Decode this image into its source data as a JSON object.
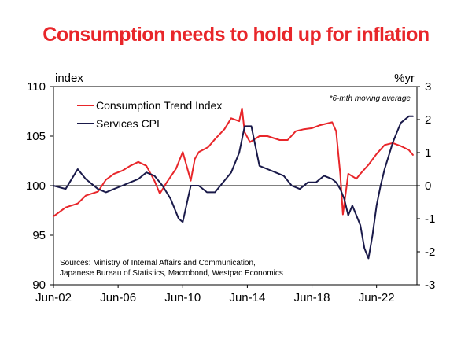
{
  "title": "Consumption needs to hold up for inflation",
  "chart_data": {
    "type": "line",
    "left_axis_label": "index",
    "right_axis_label": "%yr",
    "left_ylim": [
      90,
      110
    ],
    "right_ylim": [
      -3,
      3
    ],
    "left_ticks": [
      "90",
      "95",
      "100",
      "105",
      "110"
    ],
    "right_ticks": [
      "-3",
      "-2",
      "-1",
      "0",
      "1",
      "2",
      "3"
    ],
    "xlim": [
      "2002-06",
      "2024-12"
    ],
    "x_tick_labels": [
      "Jun-02",
      "Jun-06",
      "Jun-10",
      "Jun-14",
      "Jun-18",
      "Jun-22"
    ],
    "note": "*6-mth moving average",
    "sources_line1": "Sources: Ministry of Internal Affairs and Communication,",
    "sources_line2": "Japanese Bureau of Statistics, Macrobond, Westpac Economics",
    "series": [
      {
        "name": "Consumption Trend Index",
        "axis": "left",
        "color": "#e8262a",
        "x": [
          "2002-06",
          "2003-03",
          "2003-12",
          "2004-06",
          "2005-03",
          "2005-09",
          "2006-03",
          "2006-09",
          "2007-03",
          "2007-09",
          "2008-03",
          "2008-09",
          "2009-01",
          "2009-06",
          "2010-01",
          "2010-06",
          "2010-12",
          "2011-03",
          "2011-06",
          "2012-01",
          "2012-06",
          "2013-01",
          "2013-06",
          "2013-12",
          "2014-02",
          "2014-04",
          "2014-08",
          "2015-03",
          "2015-09",
          "2016-06",
          "2016-12",
          "2017-06",
          "2017-12",
          "2018-06",
          "2018-12",
          "2019-06",
          "2019-09",
          "2019-12",
          "2020-03",
          "2020-05",
          "2020-09",
          "2021-03",
          "2021-06",
          "2021-12",
          "2022-06",
          "2022-12",
          "2023-06",
          "2023-12",
          "2024-06",
          "2024-09"
        ],
        "values": [
          96.9,
          97.8,
          98.2,
          99.0,
          99.4,
          100.6,
          101.2,
          101.5,
          102.0,
          102.4,
          102.0,
          100.5,
          99.2,
          100.3,
          101.7,
          103.4,
          100.5,
          102.7,
          103.4,
          103.9,
          104.7,
          105.7,
          106.8,
          106.5,
          107.8,
          105.4,
          104.4,
          105.0,
          105.0,
          104.6,
          104.6,
          105.5,
          105.7,
          105.8,
          106.1,
          106.3,
          106.4,
          105.5,
          101.2,
          97.1,
          101.2,
          100.7,
          101.2,
          102.1,
          103.2,
          104.1,
          104.3,
          104.0,
          103.6,
          103.1
        ]
      },
      {
        "name": "Services CPI",
        "axis": "right",
        "color": "#1a1a4a",
        "x": [
          "2002-06",
          "2003-03",
          "2003-06",
          "2003-12",
          "2004-06",
          "2005-03",
          "2005-09",
          "2006-03",
          "2006-09",
          "2007-03",
          "2007-09",
          "2008-03",
          "2008-09",
          "2009-03",
          "2009-09",
          "2010-03",
          "2010-06",
          "2010-12",
          "2011-06",
          "2011-12",
          "2012-06",
          "2012-12",
          "2013-06",
          "2013-12",
          "2014-04",
          "2014-09",
          "2015-03",
          "2015-09",
          "2016-03",
          "2016-09",
          "2017-03",
          "2017-09",
          "2018-03",
          "2018-09",
          "2019-03",
          "2019-09",
          "2019-12",
          "2020-03",
          "2020-06",
          "2020-09",
          "2020-12",
          "2021-03",
          "2021-06",
          "2021-09",
          "2021-12",
          "2022-03",
          "2022-06",
          "2022-09",
          "2022-12",
          "2023-03",
          "2023-06",
          "2023-09",
          "2023-12",
          "2024-03",
          "2024-06",
          "2024-09"
        ],
        "values": [
          0.0,
          -0.1,
          0.1,
          0.5,
          0.2,
          -0.1,
          -0.2,
          -0.1,
          0.0,
          0.1,
          0.2,
          0.4,
          0.3,
          0.0,
          -0.4,
          -1.0,
          -1.1,
          0.0,
          0.0,
          -0.2,
          -0.2,
          0.1,
          0.4,
          1.0,
          1.8,
          1.8,
          0.6,
          0.5,
          0.4,
          0.3,
          0.0,
          -0.1,
          0.1,
          0.1,
          0.3,
          0.2,
          0.1,
          -0.1,
          -0.4,
          -0.9,
          -0.6,
          -0.9,
          -1.2,
          -1.9,
          -2.2,
          -1.5,
          -0.6,
          0.0,
          0.5,
          0.9,
          1.3,
          1.6,
          1.9,
          2.0,
          2.1,
          2.1
        ]
      }
    ]
  }
}
